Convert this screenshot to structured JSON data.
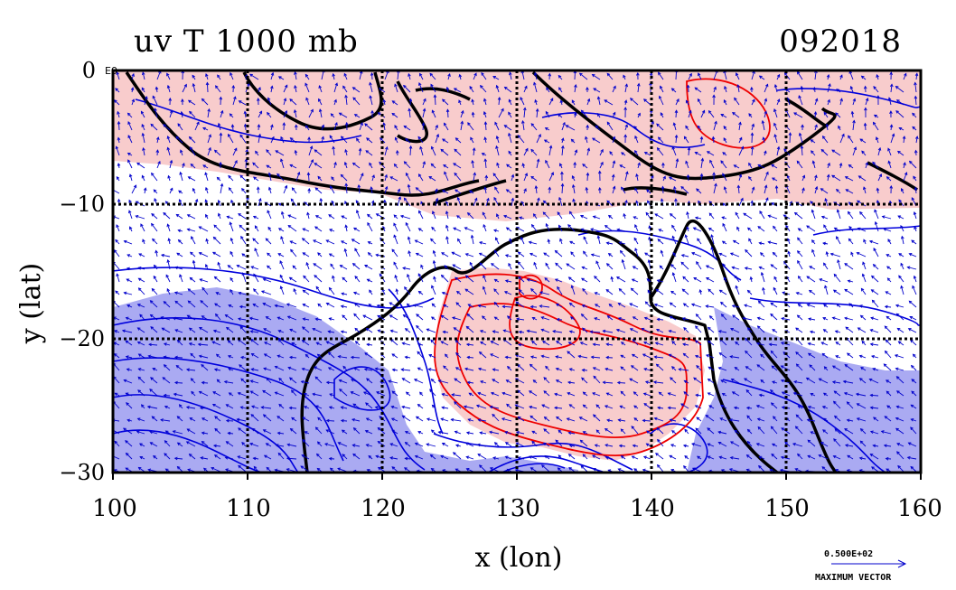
{
  "header": {
    "title": "uv T 1000 mb",
    "date_code": "092018"
  },
  "axes": {
    "xlabel": "x (lon)",
    "ylabel": "y (lat)",
    "x_ticks": [
      "100",
      "110",
      "120",
      "130",
      "140",
      "150",
      "160"
    ],
    "y_ticks": [
      "0",
      "−10",
      "−20",
      "−30"
    ],
    "x_range": [
      100,
      160
    ],
    "y_range": [
      -30,
      0
    ],
    "grid": true,
    "y_tick_exponent": "E0"
  },
  "reference_vector": {
    "value": "0.500E+02",
    "label": "MAXIMUM VECTOR"
  },
  "colors": {
    "warm_fill": "#f8cccc",
    "cool_fill": "#aaaaf2",
    "warm_contour": "#ee0000",
    "cool_contour": "#0000dd",
    "coastline": "#000000",
    "vectors": "#0000cc"
  }
}
